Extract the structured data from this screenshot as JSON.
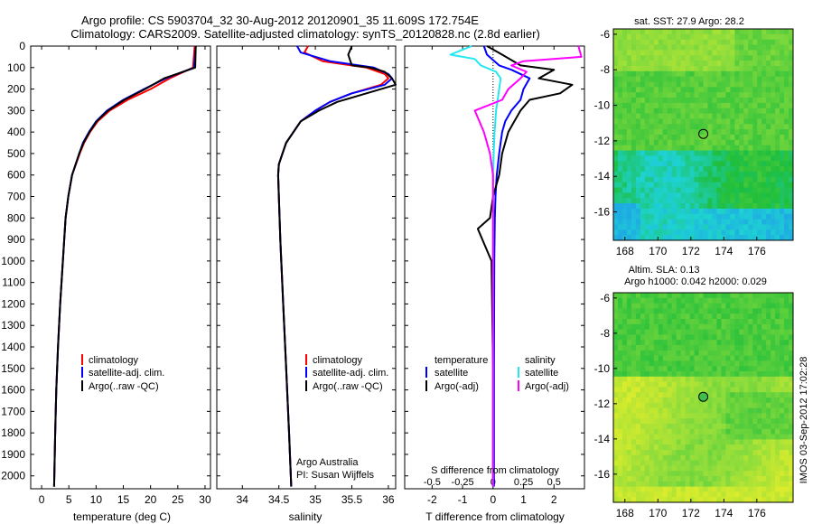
{
  "header": {
    "line1": "Argo profile: CS 5903704_32 30-Aug-2012 20120901_35 11.609S 172.754E",
    "line2": "Climatology: CARS2009. Satellite-adjusted climatology: synTS_20120828.nc (2.8d earlier)"
  },
  "colors": {
    "climatology": "#ff0000",
    "satellite_adj": "#0000ff",
    "argo": "#000000",
    "satellite_s": "#22e8f0",
    "argo_s": "#ff00ff"
  },
  "depth_axis": {
    "ticks": [
      0,
      100,
      200,
      300,
      400,
      500,
      600,
      700,
      800,
      900,
      1000,
      1100,
      1200,
      1300,
      1400,
      1500,
      1600,
      1700,
      1800,
      1900,
      2000
    ],
    "ylim": [
      2060,
      0
    ]
  },
  "legend": {
    "climatology": "climatology",
    "satellite_adj": "satellite-adj. clim.",
    "argo": "Argo(..raw -QC)"
  },
  "credit": {
    "line1": "Argo Australia",
    "line2": "PI: Susan Wijffels"
  },
  "diff_legend": {
    "temp_header": "temperature",
    "sal_header": "salinity",
    "satellite": "satellite",
    "argo": "Argo(-adj)"
  },
  "chart_data": [
    {
      "type": "line",
      "id": "temperature",
      "xlabel": "temperature (deg C)",
      "xticks": [
        0,
        5,
        10,
        15,
        20,
        25,
        30
      ],
      "xlim": [
        -2,
        31
      ],
      "ylim": [
        2060,
        0
      ],
      "series": [
        {
          "key": "climatology",
          "depth": [
            0,
            100,
            150,
            200,
            250,
            300,
            350,
            400,
            450,
            500,
            600,
            700,
            800,
            1000,
            1200,
            1400,
            1600,
            1800,
            2050
          ],
          "values": [
            28.1,
            27.8,
            23.5,
            20.0,
            15.8,
            12.5,
            10.3,
            8.9,
            7.8,
            7.0,
            5.6,
            4.9,
            4.4,
            3.9,
            3.4,
            3.0,
            2.7,
            2.5,
            2.3
          ]
        },
        {
          "key": "satellite_adj",
          "depth": [
            0,
            100,
            150,
            200,
            250,
            300,
            350,
            400,
            450,
            500,
            600,
            700,
            800,
            1000,
            1200,
            1400,
            1600,
            1800,
            2050
          ],
          "values": [
            28.3,
            28.0,
            22.8,
            18.8,
            15.0,
            12.0,
            10.0,
            8.7,
            7.6,
            6.9,
            5.6,
            4.9,
            4.4,
            3.9,
            3.4,
            3.0,
            2.7,
            2.5,
            2.3
          ]
        },
        {
          "key": "argo",
          "depth": [
            0,
            100,
            150,
            200,
            250,
            300,
            350,
            400,
            450,
            500,
            600,
            700,
            800,
            1000,
            1200,
            1400,
            1600,
            1800,
            2050
          ],
          "values": [
            28.3,
            28.2,
            22.5,
            19.0,
            15.2,
            12.2,
            10.1,
            8.8,
            7.7,
            6.9,
            5.6,
            4.9,
            4.4,
            3.9,
            3.4,
            3.0,
            2.7,
            2.5,
            2.3
          ]
        }
      ]
    },
    {
      "type": "line",
      "id": "salinity",
      "xlabel": "salinity",
      "xticks": [
        34,
        34.5,
        35,
        35.5,
        36
      ],
      "xlim": [
        33.65,
        36.1
      ],
      "ylim": [
        2060,
        0
      ],
      "series": [
        {
          "key": "climatology",
          "depth": [
            0,
            30,
            70,
            100,
            130,
            150,
            180,
            220,
            260,
            300,
            350,
            400,
            450,
            500,
            550,
            600,
            700,
            900,
            1200,
            1500,
            1800,
            2050
          ],
          "values": [
            34.9,
            34.85,
            35.1,
            35.7,
            35.95,
            36.0,
            35.9,
            35.5,
            35.2,
            35.0,
            34.8,
            34.7,
            34.6,
            34.55,
            34.5,
            34.49,
            34.5,
            34.52,
            34.56,
            34.6,
            34.64,
            34.67
          ]
        },
        {
          "key": "satellite_adj",
          "depth": [
            0,
            30,
            70,
            100,
            130,
            150,
            180,
            220,
            260,
            300,
            350,
            400,
            450,
            500,
            550,
            600,
            700,
            900,
            1200,
            1500,
            1800,
            2050
          ],
          "values": [
            34.75,
            34.8,
            35.2,
            35.8,
            36.0,
            36.05,
            35.95,
            35.5,
            35.2,
            35.0,
            34.8,
            34.7,
            34.6,
            34.55,
            34.5,
            34.49,
            34.5,
            34.52,
            34.56,
            34.6,
            34.64,
            34.67
          ]
        },
        {
          "key": "argo",
          "depth": [
            0,
            40,
            90,
            100,
            120,
            150,
            180,
            220,
            260,
            300,
            350,
            400,
            450,
            500,
            550,
            600,
            700,
            900,
            1200,
            1500,
            1800,
            2050
          ],
          "values": [
            35.5,
            35.45,
            35.5,
            35.75,
            35.95,
            36.05,
            36.1,
            35.7,
            35.3,
            35.05,
            34.8,
            34.7,
            34.6,
            34.55,
            34.5,
            34.49,
            34.5,
            34.52,
            34.56,
            34.6,
            34.64,
            34.67
          ]
        }
      ]
    },
    {
      "type": "line",
      "id": "difference",
      "xlabel": "T difference from climatology",
      "xlabel_top": "S difference from climatology",
      "xticks": [
        -2,
        -1,
        0,
        1,
        2
      ],
      "xticks_top": [
        "-0.5",
        "-0.25",
        "0",
        "0.25",
        "0.5"
      ],
      "xlim": [
        -2.9,
        3.0
      ],
      "ylim": [
        2060,
        0
      ],
      "series": [
        {
          "key": "sat_t",
          "color_key": "satellite_adj",
          "depth": [
            0,
            40,
            90,
            110,
            150,
            200,
            250,
            300,
            350,
            400,
            450,
            500,
            600,
            700,
            800,
            1000,
            1500,
            2050
          ],
          "values": [
            -0.3,
            -0.2,
            0.2,
            0.6,
            1.2,
            1.0,
            0.9,
            0.6,
            0.4,
            0.3,
            0.25,
            0.2,
            0.12,
            0.08,
            0.06,
            0.04,
            0.03,
            0.03
          ]
        },
        {
          "key": "argo_t",
          "color_key": "argo",
          "depth": [
            0,
            40,
            90,
            110,
            150,
            180,
            220,
            250,
            300,
            350,
            400,
            450,
            500,
            600,
            700,
            800,
            850,
            1000,
            1500,
            2050
          ],
          "values": [
            -0.2,
            0.3,
            0.9,
            2.0,
            1.5,
            2.6,
            2.2,
            1.2,
            0.9,
            0.7,
            0.5,
            0.4,
            0.3,
            0.2,
            0.0,
            -0.1,
            -0.5,
            -0.05,
            0.0,
            0.0
          ]
        },
        {
          "key": "sat_s",
          "color_key": "satellite_s",
          "depth": [
            0,
            40,
            60,
            90,
            120,
            150,
            200,
            250,
            300,
            400,
            500,
            600,
            800,
            1000,
            1500,
            2050
          ],
          "values": [
            -0.7,
            -1.4,
            -0.6,
            -0.4,
            0.1,
            0.25,
            0.2,
            0.15,
            0.1,
            0.05,
            0.02,
            0.0,
            0.0,
            0.0,
            0.0,
            0.0
          ]
        },
        {
          "key": "argo_s",
          "color_key": "argo_s",
          "depth": [
            0,
            50,
            70,
            90,
            120,
            150,
            200,
            250,
            300,
            400,
            500,
            600,
            800,
            1000,
            1500,
            2050
          ],
          "values": [
            2.8,
            2.9,
            1.0,
            0.6,
            1.1,
            0.9,
            0.5,
            0.3,
            -0.6,
            -0.3,
            -0.1,
            0.0,
            0.0,
            0.0,
            0.0,
            0.0
          ]
        }
      ]
    },
    {
      "type": "heatmap",
      "id": "sst_map",
      "title": "sat. SST: 27.9  Argo: 28.2",
      "xticks": [
        168,
        170,
        172,
        174,
        176
      ],
      "yticks": [
        -6,
        -8,
        -10,
        -12,
        -14,
        -16
      ],
      "xlim": [
        167.3,
        178.2
      ],
      "ylim": [
        -17.6,
        -5.7
      ],
      "marker": {
        "lon": 172.754,
        "lat": -11.609
      }
    },
    {
      "type": "heatmap",
      "id": "sla_map",
      "title_line1": "Altim. SLA: 0.13",
      "title_line2": "Argo h1000: 0.042 h2000: 0.029",
      "xticks": [
        168,
        170,
        172,
        174,
        176
      ],
      "yticks": [
        -6,
        -8,
        -10,
        -12,
        -14,
        -16
      ],
      "xlim": [
        167.3,
        178.2
      ],
      "ylim": [
        -17.6,
        -5.7
      ],
      "marker": {
        "lon": 172.754,
        "lat": -11.609
      }
    }
  ],
  "timestamp": "IMOS 03-Sep-2012 17:02:28"
}
